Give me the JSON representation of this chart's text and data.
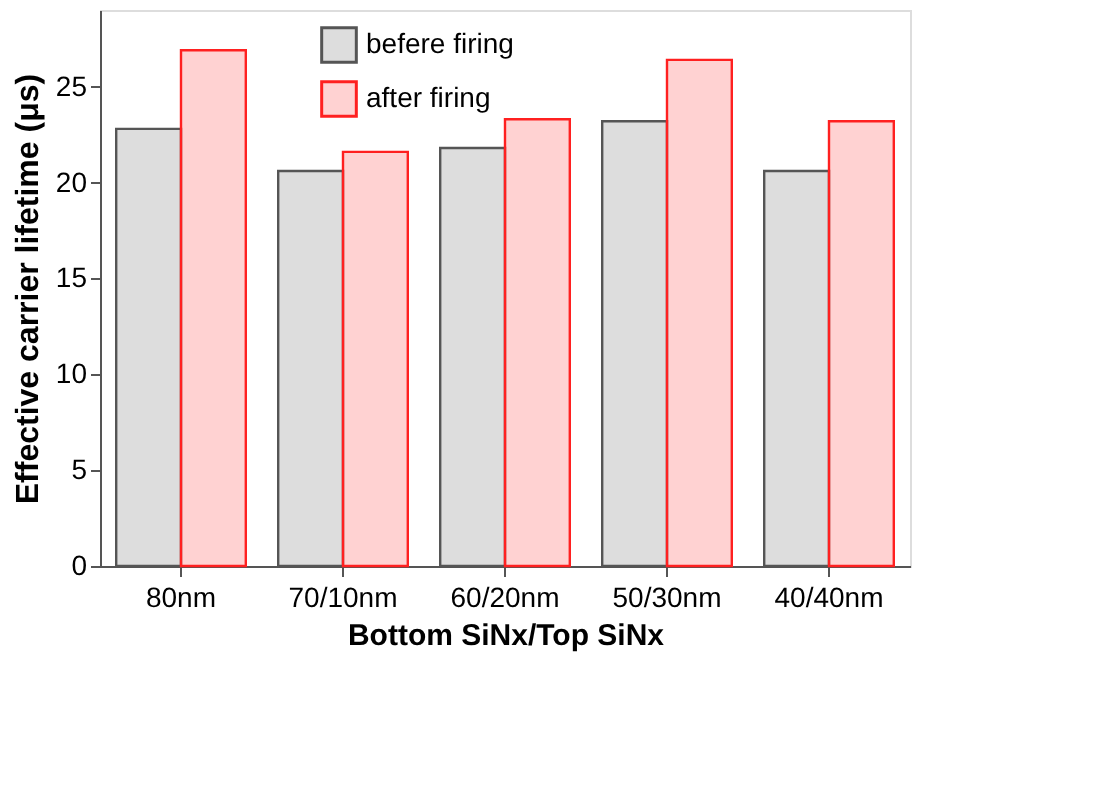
{
  "chart_data": {
    "type": "bar",
    "xlabel": "Bottom SiNx/Top SiNx",
    "ylabel": "Effective carrier lifetime (μs)",
    "categories": [
      "80nm",
      "70/10nm",
      "60/20nm",
      "50/30nm",
      "40/40nm"
    ],
    "series": [
      {
        "name": "befere firing",
        "color": "#555555",
        "values": [
          22.8,
          20.6,
          21.8,
          23.2,
          20.6
        ]
      },
      {
        "name": "after firing",
        "color": "#ff2020",
        "values": [
          26.9,
          21.6,
          23.3,
          26.4,
          23.2
        ]
      }
    ],
    "ylim": [
      0,
      29
    ],
    "yticks": [
      0,
      5,
      10,
      15,
      20,
      25
    ],
    "grid": false,
    "legend": "top left"
  }
}
